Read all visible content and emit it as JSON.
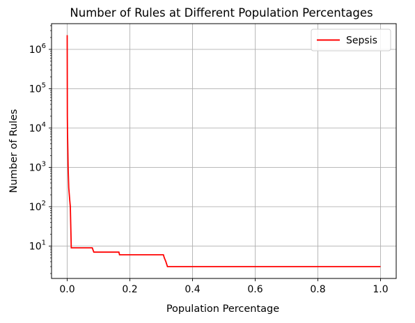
{
  "chart_data": {
    "type": "line",
    "title": "Number of Rules at Different Population Percentages",
    "xlabel": "Population Percentage",
    "ylabel": "Number of Rules",
    "y_scale": "log",
    "xlim": [
      -0.05,
      1.05
    ],
    "ylim": [
      1.5,
      4500000
    ],
    "x_ticks": [
      0.0,
      0.2,
      0.4,
      0.6,
      0.8,
      1.0
    ],
    "x_tick_labels": [
      "0.0",
      "0.2",
      "0.4",
      "0.6",
      "0.8",
      "1.0"
    ],
    "y_ticks": [
      10,
      100,
      1000,
      10000,
      100000,
      1000000
    ],
    "y_tick_labels": [
      {
        "base": "10",
        "exp": "1"
      },
      {
        "base": "10",
        "exp": "2"
      },
      {
        "base": "10",
        "exp": "3"
      },
      {
        "base": "10",
        "exp": "4"
      },
      {
        "base": "10",
        "exp": "5"
      },
      {
        "base": "10",
        "exp": "6"
      }
    ],
    "grid": true,
    "legend_position": "top-right",
    "series": [
      {
        "name": "Sepsis",
        "color": "#ff0000",
        "x": [
          0.0,
          0.0005,
          0.001,
          0.002,
          0.003,
          0.005,
          0.008,
          0.01,
          0.013,
          0.015,
          0.08,
          0.085,
          0.165,
          0.167,
          0.307,
          0.31,
          0.315,
          0.32,
          1.0
        ],
        "y": [
          2300000,
          20000,
          8000,
          3000,
          1000,
          300,
          150,
          100,
          9,
          9,
          9,
          7,
          7,
          6,
          6,
          5,
          4,
          3,
          3
        ]
      }
    ]
  }
}
